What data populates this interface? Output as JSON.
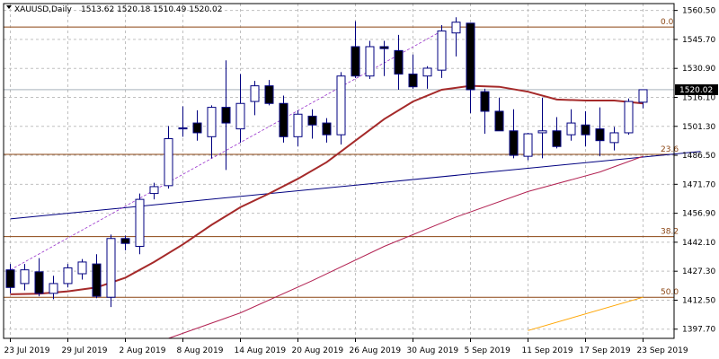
{
  "header": {
    "symbol": "XAUUSD,Daily",
    "ohlc": "1513.62 1520.18 1510.49 1520.02"
  },
  "colors": {
    "bull_fill": "#ffffff",
    "bear_fill": "#000000",
    "candle_stroke": "#000080",
    "grid": "#c0c0c0",
    "fib": "#8b4513",
    "ma_fast": "#a52a2a",
    "ma_slow": "#b22252",
    "trend_blue": "#000080",
    "trend_dashed": "#9932cc",
    "orange_line": "#ffa500",
    "price_box_bg": "#000000",
    "price_box_text": "#ffffff"
  },
  "chart_data": {
    "type": "candlestick",
    "symbol": "XAUUSD",
    "timeframe": "Daily",
    "ylim": [
      1393.0,
      1564.0
    ],
    "grid": true,
    "y_ticks": [
      1560.5,
      1545.7,
      1530.9,
      1516.1,
      1501.3,
      1486.5,
      1471.7,
      1456.9,
      1442.1,
      1427.3,
      1412.5,
      1397.7
    ],
    "x_tick_labels": [
      {
        "label": "23 Jul 2019",
        "index": 0
      },
      {
        "label": "29 Jul 2019",
        "index": 4
      },
      {
        "label": "2 Aug 2019",
        "index": 8
      },
      {
        "label": "8 Aug 2019",
        "index": 12
      },
      {
        "label": "14 Aug 2019",
        "index": 16
      },
      {
        "label": "20 Aug 2019",
        "index": 20
      },
      {
        "label": "26 Aug 2019",
        "index": 24
      },
      {
        "label": "30 Aug 2019",
        "index": 28
      },
      {
        "label": "5 Sep 2019",
        "index": 32
      },
      {
        "label": "11 Sep 2019",
        "index": 36
      },
      {
        "label": "17 Sep 2019",
        "index": 40
      },
      {
        "label": "23 Sep 2019",
        "index": 44
      }
    ],
    "candles": [
      {
        "o": 1428.0,
        "h": 1431.0,
        "l": 1416.0,
        "c": 1419.0
      },
      {
        "o": 1421.0,
        "h": 1431.0,
        "l": 1417.5,
        "c": 1428.0
      },
      {
        "o": 1427.0,
        "h": 1434.0,
        "l": 1414.5,
        "c": 1416.0
      },
      {
        "o": 1416.0,
        "h": 1425.0,
        "l": 1413.0,
        "c": 1421.0
      },
      {
        "o": 1421.0,
        "h": 1431.0,
        "l": 1419.0,
        "c": 1429.0
      },
      {
        "o": 1426.0,
        "h": 1433.5,
        "l": 1423.0,
        "c": 1432.0
      },
      {
        "o": 1431.0,
        "h": 1436.0,
        "l": 1413.5,
        "c": 1414.5
      },
      {
        "o": 1414.0,
        "h": 1446.0,
        "l": 1409.0,
        "c": 1444.0
      },
      {
        "o": 1444.0,
        "h": 1445.5,
        "l": 1438.0,
        "c": 1441.5
      },
      {
        "o": 1440.0,
        "h": 1467.0,
        "l": 1436.0,
        "c": 1464.0
      },
      {
        "o": 1467.0,
        "h": 1472.5,
        "l": 1464.0,
        "c": 1470.5
      },
      {
        "o": 1471.0,
        "h": 1501.5,
        "l": 1469.5,
        "c": 1495.0
      },
      {
        "o": 1500.0,
        "h": 1511.5,
        "l": 1496.0,
        "c": 1500.5
      },
      {
        "o": 1503.0,
        "h": 1509.5,
        "l": 1494.0,
        "c": 1498.0
      },
      {
        "o": 1496.0,
        "h": 1512.0,
        "l": 1485.0,
        "c": 1511.0
      },
      {
        "o": 1511.0,
        "h": 1535.0,
        "l": 1479.0,
        "c": 1503.0
      },
      {
        "o": 1500.0,
        "h": 1528.0,
        "l": 1493.0,
        "c": 1513.0
      },
      {
        "o": 1514.0,
        "h": 1524.5,
        "l": 1507.0,
        "c": 1522.0
      },
      {
        "o": 1522.0,
        "h": 1525.0,
        "l": 1512.0,
        "c": 1513.0
      },
      {
        "o": 1513.0,
        "h": 1517.0,
        "l": 1493.0,
        "c": 1496.0
      },
      {
        "o": 1496.0,
        "h": 1509.5,
        "l": 1491.0,
        "c": 1507.5
      },
      {
        "o": 1506.5,
        "h": 1510.0,
        "l": 1495.0,
        "c": 1502.0
      },
      {
        "o": 1503.0,
        "h": 1505.5,
        "l": 1493.0,
        "c": 1497.0
      },
      {
        "o": 1497.0,
        "h": 1529.0,
        "l": 1492.0,
        "c": 1527.0
      },
      {
        "o": 1542.0,
        "h": 1555.0,
        "l": 1526.0,
        "c": 1527.0
      },
      {
        "o": 1527.0,
        "h": 1545.0,
        "l": 1525.5,
        "c": 1542.0
      },
      {
        "o": 1542.0,
        "h": 1545.0,
        "l": 1527.0,
        "c": 1541.0
      },
      {
        "o": 1540.0,
        "h": 1548.0,
        "l": 1520.0,
        "c": 1528.0
      },
      {
        "o": 1528.0,
        "h": 1538.0,
        "l": 1520.5,
        "c": 1521.5
      },
      {
        "o": 1527.0,
        "h": 1532.0,
        "l": 1520.5,
        "c": 1531.0
      },
      {
        "o": 1530.0,
        "h": 1553.0,
        "l": 1526.0,
        "c": 1550.0
      },
      {
        "o": 1549.0,
        "h": 1557.0,
        "l": 1537.0,
        "c": 1554.5
      },
      {
        "o": 1554.0,
        "h": 1554.0,
        "l": 1508.0,
        "c": 1520.0
      },
      {
        "o": 1519.0,
        "h": 1520.5,
        "l": 1497.5,
        "c": 1509.0
      },
      {
        "o": 1509.0,
        "h": 1516.0,
        "l": 1500.0,
        "c": 1499.0
      },
      {
        "o": 1499.0,
        "h": 1510.0,
        "l": 1485.0,
        "c": 1486.5
      },
      {
        "o": 1486.0,
        "h": 1498.0,
        "l": 1484.0,
        "c": 1497.5
      },
      {
        "o": 1498.0,
        "h": 1516.0,
        "l": 1485.0,
        "c": 1499.0
      },
      {
        "o": 1499.0,
        "h": 1506.0,
        "l": 1490.0,
        "c": 1491.0
      },
      {
        "o": 1497.0,
        "h": 1510.0,
        "l": 1494.0,
        "c": 1503.0
      },
      {
        "o": 1502.0,
        "h": 1509.0,
        "l": 1491.0,
        "c": 1497.0
      },
      {
        "o": 1500.0,
        "h": 1511.0,
        "l": 1486.0,
        "c": 1494.0
      },
      {
        "o": 1493.0,
        "h": 1501.0,
        "l": 1489.0,
        "c": 1498.0
      },
      {
        "o": 1498.0,
        "h": 1515.5,
        "l": 1497.0,
        "c": 1514.0
      },
      {
        "o": 1513.62,
        "h": 1520.18,
        "l": 1510.49,
        "c": 1520.02
      }
    ],
    "horizontal_levels": [
      {
        "label": "0.0",
        "value": 1552.0
      },
      {
        "label": "23.6",
        "value": 1487.0
      },
      {
        "label": "38.2",
        "value": 1445.0
      },
      {
        "label": "50.0",
        "value": 1414.0
      }
    ],
    "current_price": 1520.02,
    "moving_average_fast": [
      {
        "i": 0,
        "v": 1415.5
      },
      {
        "i": 2,
        "v": 1415.8
      },
      {
        "i": 4,
        "v": 1417.0
      },
      {
        "i": 6,
        "v": 1419.0
      },
      {
        "i": 8,
        "v": 1424.0
      },
      {
        "i": 10,
        "v": 1432.0
      },
      {
        "i": 12,
        "v": 1441.0
      },
      {
        "i": 14,
        "v": 1451.0
      },
      {
        "i": 16,
        "v": 1460.0
      },
      {
        "i": 18,
        "v": 1467.0
      },
      {
        "i": 20,
        "v": 1474.5
      },
      {
        "i": 22,
        "v": 1483.0
      },
      {
        "i": 24,
        "v": 1494.0
      },
      {
        "i": 26,
        "v": 1505.0
      },
      {
        "i": 28,
        "v": 1514.0
      },
      {
        "i": 30,
        "v": 1520.0
      },
      {
        "i": 32,
        "v": 1522.0
      },
      {
        "i": 34,
        "v": 1521.5
      },
      {
        "i": 36,
        "v": 1519.0
      },
      {
        "i": 38,
        "v": 1515.0
      },
      {
        "i": 40,
        "v": 1514.5
      },
      {
        "i": 42,
        "v": 1514.5
      },
      {
        "i": 44,
        "v": 1513.0
      }
    ],
    "moving_average_slow": [
      {
        "i": 11,
        "v": 1393.0
      },
      {
        "i": 16,
        "v": 1406.0
      },
      {
        "i": 21,
        "v": 1422.5
      },
      {
        "i": 26,
        "v": 1440.0
      },
      {
        "i": 31,
        "v": 1455.0
      },
      {
        "i": 36,
        "v": 1468.0
      },
      {
        "i": 41,
        "v": 1478.0
      },
      {
        "i": 44,
        "v": 1486.0
      }
    ],
    "trendline_blue": [
      {
        "i": 0,
        "v": 1454.0
      },
      {
        "i": 48,
        "v": 1488.5
      }
    ],
    "trendline_dashed": [
      {
        "i": 0,
        "v": 1428.0
      },
      {
        "i": 30,
        "v": 1550.0
      }
    ],
    "line_orange": [
      {
        "i": 36,
        "v": 1397.0
      },
      {
        "i": 44,
        "v": 1414.0
      }
    ]
  }
}
